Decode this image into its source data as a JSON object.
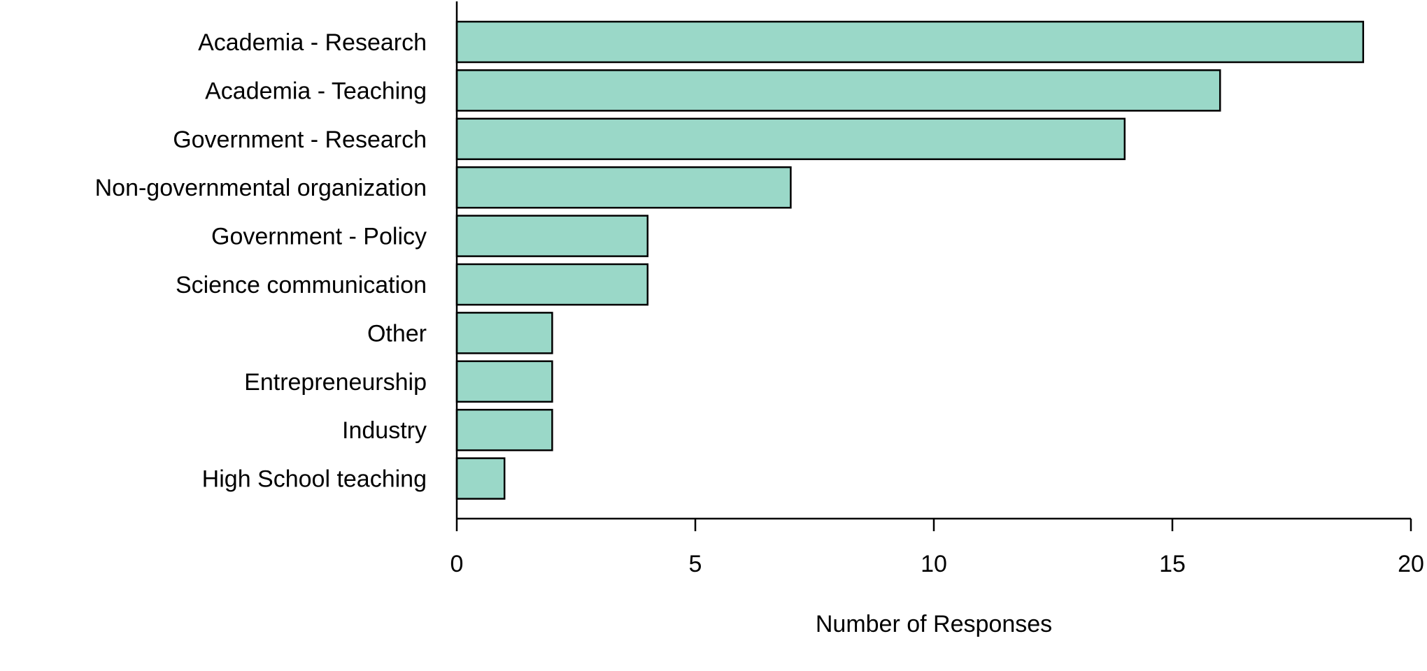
{
  "chart_data": {
    "type": "bar",
    "orientation": "horizontal",
    "title": "",
    "xlabel": "Number of Responses",
    "ylabel": "",
    "categories": [
      "Academia - Research",
      "Academia - Teaching",
      "Government - Research",
      "Non-governmental organization",
      "Government - Policy",
      "Science communication",
      "Other",
      "Entrepreneurship",
      "Industry",
      "High School teaching"
    ],
    "values": [
      19,
      16,
      14,
      7,
      4,
      4,
      2,
      2,
      2,
      1
    ],
    "xlim": [
      0,
      20
    ],
    "xticks": [
      0,
      5,
      10,
      15,
      20
    ],
    "grid": false,
    "legend": "none",
    "bar_color": "#9ad8c8",
    "edge_color": "#000000"
  }
}
